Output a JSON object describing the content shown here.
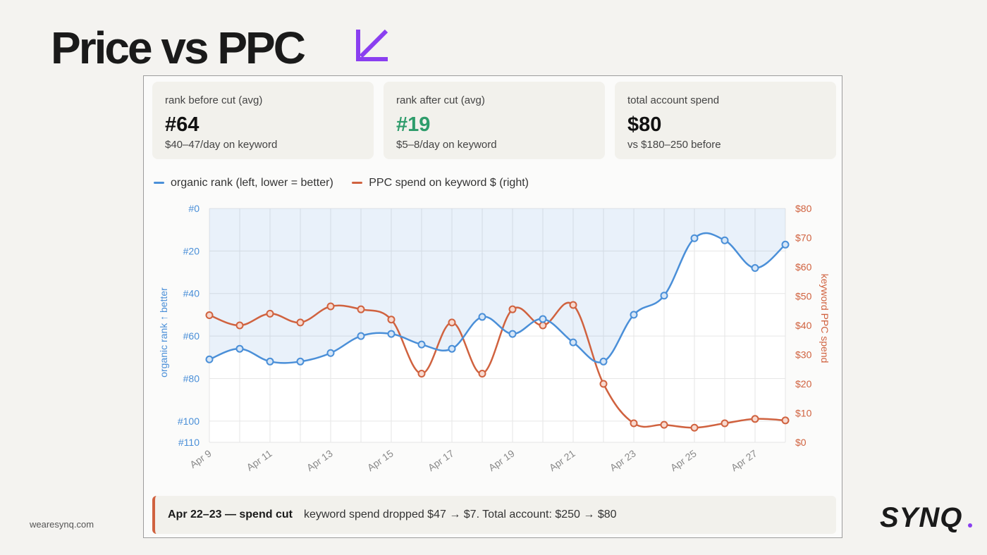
{
  "slide": {
    "title": "Price vs PPC",
    "footer_url": "wearesynq.com",
    "brand": "SYNQ",
    "accent_color": "#8a3ff0"
  },
  "kpis": [
    {
      "label": "rank before cut (avg)",
      "value": "#64",
      "sub": "$40–47/day on keyword"
    },
    {
      "label": "rank after cut (avg)",
      "value": "#19",
      "sub": "$5–8/day on keyword"
    },
    {
      "label": "total account spend",
      "value": "$80",
      "sub": "vs $180–250 before"
    }
  ],
  "legend": {
    "rank": "organic rank (left, lower = better)",
    "spend": "PPC spend on keyword $ (right)"
  },
  "note": {
    "title": "Apr 22–23 — spend cut",
    "text": "keyword spend dropped $47 → $7. Total account: $250 → $80"
  },
  "chart_data": {
    "type": "line",
    "x": [
      "Apr 9",
      "Apr 10",
      "Apr 11",
      "Apr 12",
      "Apr 13",
      "Apr 14",
      "Apr 15",
      "Apr 16",
      "Apr 17",
      "Apr 18",
      "Apr 19",
      "Apr 20",
      "Apr 21",
      "Apr 22",
      "Apr 23",
      "Apr 24",
      "Apr 25",
      "Apr 26",
      "Apr 27",
      "Apr 28"
    ],
    "tick_labels": [
      "Apr 9",
      "Apr 11",
      "Apr 13",
      "Apr 15",
      "Apr 17",
      "Apr 19",
      "Apr 21",
      "Apr 23",
      "Apr 25",
      "Apr 27"
    ],
    "series": [
      {
        "name": "organic rank (left, lower = better)",
        "axis": "left",
        "color": "#4a8fd8",
        "values": [
          71,
          66,
          72,
          72,
          68,
          60,
          59,
          64,
          66,
          51,
          59,
          52,
          63,
          72,
          50,
          41,
          14,
          15,
          28,
          17
        ]
      },
      {
        "name": "PPC spend on keyword $ (right)",
        "axis": "right",
        "color": "#d0623f",
        "values": [
          43.5,
          40,
          44,
          41,
          46.5,
          45.5,
          42,
          23.5,
          41,
          23.5,
          45.5,
          40,
          47,
          20,
          6.5,
          6,
          5,
          6.5,
          8,
          7.5
        ]
      }
    ],
    "y_left": {
      "label": "organic rank ↑ better",
      "ylim": [
        0,
        110
      ],
      "inverted": true,
      "ticks": [
        0,
        20,
        40,
        60,
        80,
        100,
        110
      ],
      "tick_labels": [
        "#0",
        "#20",
        "#40",
        "#60",
        "#80",
        "#100",
        "#110"
      ]
    },
    "y_right": {
      "label": "keyword PPC spend",
      "ylim": [
        0,
        80
      ],
      "ticks": [
        0,
        10,
        20,
        30,
        40,
        50,
        60,
        70,
        80
      ],
      "tick_labels": [
        "$0",
        "$10",
        "$20",
        "$30",
        "$40",
        "$50",
        "$60",
        "$70",
        "$80"
      ]
    },
    "grid": true,
    "legend_position": "top-left",
    "area_fill_under_rank": true
  }
}
